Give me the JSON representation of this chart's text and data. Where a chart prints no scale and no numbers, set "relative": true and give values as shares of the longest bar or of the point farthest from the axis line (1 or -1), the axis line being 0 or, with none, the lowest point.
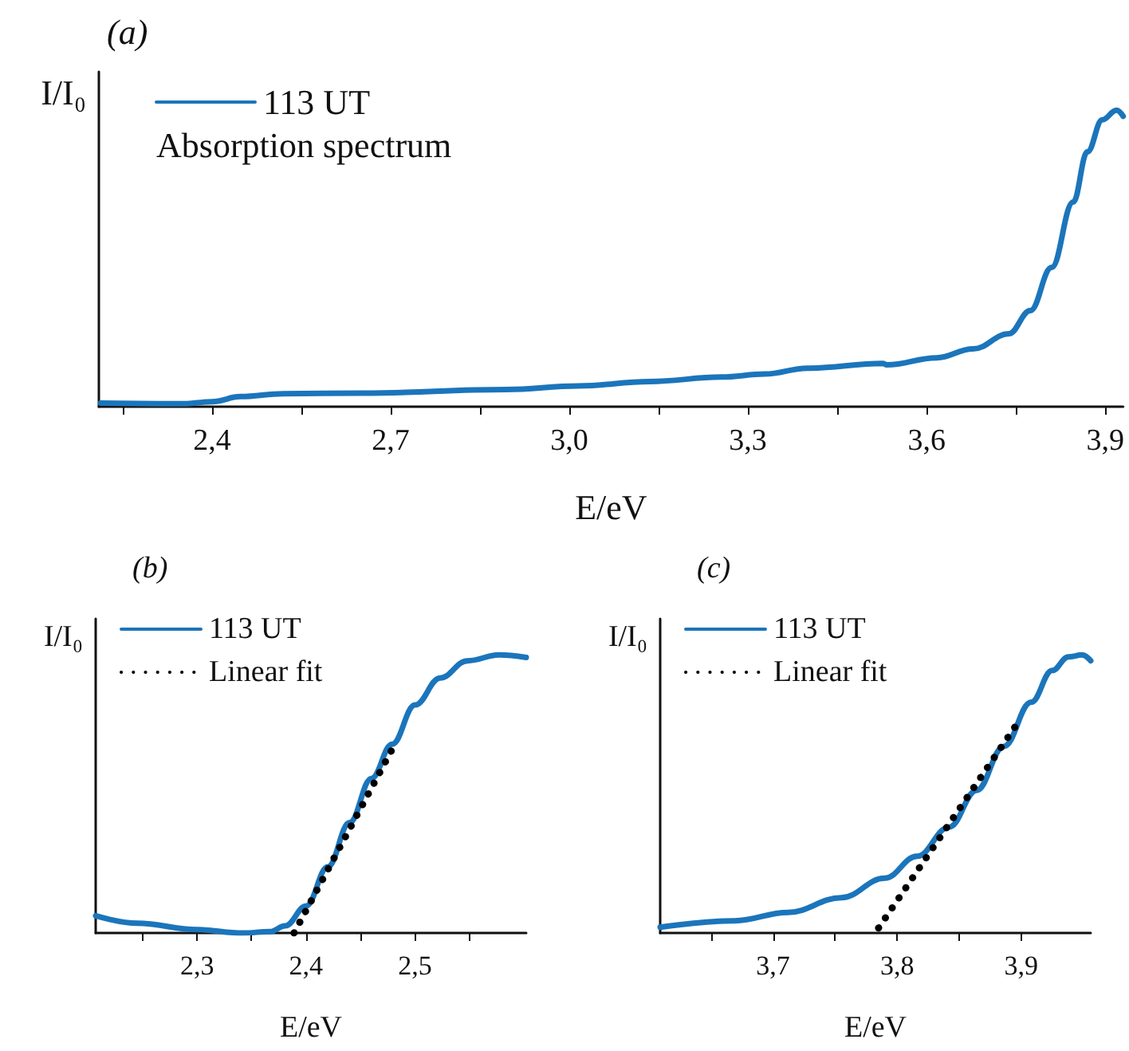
{
  "chart_data": [
    {
      "type": "line",
      "title": "(a)",
      "xlabel": "E/eV",
      "ylabel": "I/I₀",
      "relative": true,
      "legend": "top left",
      "grid": false,
      "annotations": [
        "Absorption spectrum"
      ],
      "xlim": [
        2.21,
        3.93
      ],
      "xticks": [
        {
          "value": 2.25,
          "label": null
        },
        {
          "value": 2.4,
          "label": "2,4"
        },
        {
          "value": 2.55,
          "label": null
        },
        {
          "value": 2.7,
          "label": "2,7"
        },
        {
          "value": 2.85,
          "label": null
        },
        {
          "value": 3.0,
          "label": "3,0"
        },
        {
          "value": 3.15,
          "label": null
        },
        {
          "value": 3.3,
          "label": "3,3"
        },
        {
          "value": 3.45,
          "label": null
        },
        {
          "value": 3.6,
          "label": "3,6"
        },
        {
          "value": 3.75,
          "label": null
        },
        {
          "value": 3.9,
          "label": "3,9"
        }
      ],
      "series": [
        {
          "name": "113 UT",
          "color": "#1b75bb",
          "line_style": "solid",
          "x": [
            2.213,
            2.352,
            2.4,
            2.448,
            2.52,
            2.653,
            2.894,
            3.015,
            3.135,
            3.256,
            3.328,
            3.4,
            3.527,
            3.533,
            3.617,
            3.678,
            3.738,
            3.774,
            3.81,
            3.846,
            3.87,
            3.895,
            3.919,
            3.93
          ],
          "values": [
            0.012,
            0.01,
            0.017,
            0.034,
            0.044,
            0.046,
            0.058,
            0.07,
            0.085,
            0.1,
            0.11,
            0.13,
            0.146,
            0.141,
            0.165,
            0.195,
            0.246,
            0.324,
            0.47,
            0.69,
            0.86,
            0.968,
            1.0,
            0.98
          ]
        }
      ]
    },
    {
      "type": "line",
      "title": "(b)",
      "xlabel": "E/eV",
      "ylabel": "I/I₀",
      "relative": true,
      "legend": "top left",
      "grid": false,
      "xlim": [
        2.207,
        2.602
      ],
      "xticks": [
        {
          "value": 2.25,
          "label": null
        },
        {
          "value": 2.3,
          "label": "2,3"
        },
        {
          "value": 2.35,
          "label": null
        },
        {
          "value": 2.4,
          "label": "2,4"
        },
        {
          "value": 2.45,
          "label": null
        },
        {
          "value": 2.5,
          "label": "2,5"
        },
        {
          "value": 2.55,
          "label": null
        }
      ],
      "series": [
        {
          "name": "113 UT",
          "color": "#1b75bb",
          "line_style": "solid",
          "x": [
            2.207,
            2.245,
            2.3,
            2.342,
            2.367,
            2.381,
            2.4,
            2.42,
            2.44,
            2.46,
            2.479,
            2.5,
            2.523,
            2.548,
            2.577,
            2.602
          ],
          "values": [
            0.062,
            0.035,
            0.012,
            0,
            0.005,
            0.026,
            0.097,
            0.238,
            0.397,
            0.556,
            0.679,
            0.82,
            0.917,
            0.979,
            1.0,
            0.991
          ]
        },
        {
          "name": "Linear fit",
          "color": "#000000",
          "line_style": "dotted",
          "x": [
            2.389,
            2.482
          ],
          "values": [
            0,
            0.683
          ]
        }
      ]
    },
    {
      "type": "line",
      "title": "(c)",
      "xlabel": "E/eV",
      "ylabel": "I/I₀",
      "relative": true,
      "legend": "top left",
      "grid": false,
      "xlim": [
        3.609,
        3.956
      ],
      "xticks": [
        {
          "value": 3.65,
          "label": null
        },
        {
          "value": 3.7,
          "label": "3,7"
        },
        {
          "value": 3.75,
          "label": null
        },
        {
          "value": 3.8,
          "label": "3,8"
        },
        {
          "value": 3.85,
          "label": null
        },
        {
          "value": 3.9,
          "label": "3,9"
        }
      ],
      "series": [
        {
          "name": "113 UT",
          "color": "#1b75bb",
          "line_style": "solid",
          "x": [
            3.609,
            3.669,
            3.712,
            3.755,
            3.79,
            3.816,
            3.842,
            3.864,
            3.886,
            3.908,
            3.925,
            3.938,
            3.949,
            3.956
          ],
          "values": [
            0.021,
            0.044,
            0.074,
            0.127,
            0.197,
            0.276,
            0.381,
            0.513,
            0.671,
            0.83,
            0.944,
            0.993,
            1.0,
            0.979
          ]
        },
        {
          "name": "Linear fit",
          "color": "#000000",
          "line_style": "dotted",
          "x": [
            3.785,
            3.899
          ],
          "values": [
            0.018,
            0.768
          ]
        }
      ]
    }
  ]
}
